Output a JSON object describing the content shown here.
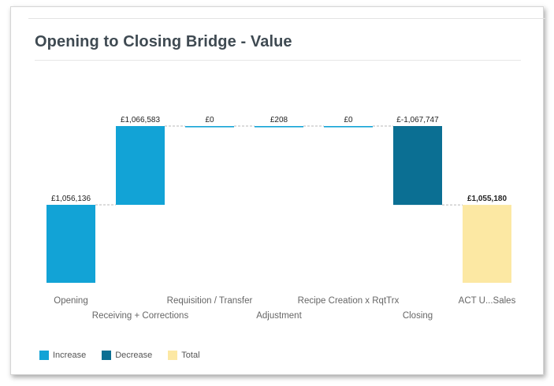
{
  "title": "Opening to Closing Bridge - Value",
  "colors": {
    "increase": "#12a3d6",
    "decrease": "#0b6f93",
    "total": "#fce8a3",
    "connector": "#b9b9b9"
  },
  "legend": [
    {
      "label": "Increase",
      "color": "#12a3d6"
    },
    {
      "label": "Decrease",
      "color": "#0b6f93"
    },
    {
      "label": "Total",
      "color": "#fce8a3"
    }
  ],
  "chart_data": {
    "type": "bar",
    "subtype": "waterfall",
    "title": "Opening to Closing Bridge - Value",
    "categories": [
      "Opening",
      "Receiving + Corrections",
      "Requisition / Transfer",
      "Adjustment",
      "Recipe Creation x RqtTrx",
      "Closing",
      "ACT U...Sales"
    ],
    "values": [
      1056136,
      1066583,
      0,
      208,
      0,
      -1067747,
      1055180
    ],
    "kinds": [
      "increase",
      "increase",
      "increase",
      "increase",
      "increase",
      "decrease",
      "total"
    ],
    "data_labels": [
      "£1,056,136",
      "£1,066,583",
      "£0",
      "£208",
      "£0",
      "£-1,067,747",
      "£1,055,180"
    ],
    "label_row": [
      0,
      1,
      0,
      1,
      0,
      1,
      0
    ],
    "xlabel": "",
    "ylabel": "",
    "grid": false,
    "legend_position": "bottom-left"
  }
}
